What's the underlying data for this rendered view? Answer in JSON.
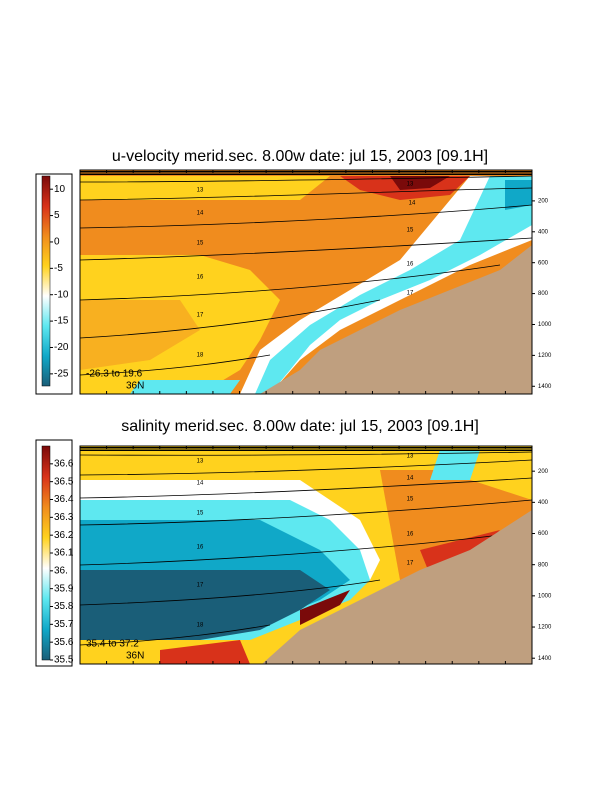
{
  "chart_data": [
    {
      "type": "section",
      "title": "u-velocity merid.sec.  8.00w   date: jul 15, 2003   [09.1H]",
      "clim": [
        -27.3,
        12.5
      ],
      "cticks": [
        10,
        5,
        0,
        -5,
        -10,
        -15,
        -20,
        -25
      ],
      "colors": [
        "#7a0a0a",
        "#d8321a",
        "#f08c1e",
        "#ffd21e",
        "#ffffff",
        "#5ee8f0",
        "#10a8c8",
        "#1a5e78"
      ],
      "ylim": [
        0,
        1450
      ],
      "yticks": [
        200,
        400,
        600,
        800,
        1000,
        1200,
        1400
      ],
      "contour_labels": [
        13,
        14,
        15,
        16,
        17,
        18
      ],
      "annotations": [
        "-26.3 to  19.6",
        "36N"
      ]
    },
    {
      "type": "section",
      "title": "salinity merid.sec.  8.00w   date: jul 15, 2003   [09.1H]",
      "clim": [
        35.5,
        36.7
      ],
      "cticks": [
        36.6,
        36.5,
        36.4,
        36.3,
        36.2,
        36.1,
        {
          "value": 36,
          "label": "36."
        },
        35.9,
        35.8,
        35.7,
        35.6,
        35.5
      ],
      "colors": [
        "#7a0a0a",
        "#d8321a",
        "#f08c1e",
        "#ffd21e",
        "#ffffff",
        "#5ee8f0",
        "#10a8c8",
        "#1a5e78"
      ],
      "ylim": [
        0,
        1450
      ],
      "yticks": [
        200,
        400,
        600,
        800,
        1000,
        1200,
        1400
      ],
      "contour_labels": [
        13,
        14,
        15,
        16,
        17,
        18
      ],
      "annotations": [
        "35.4 to  37.2",
        "36N"
      ]
    }
  ]
}
